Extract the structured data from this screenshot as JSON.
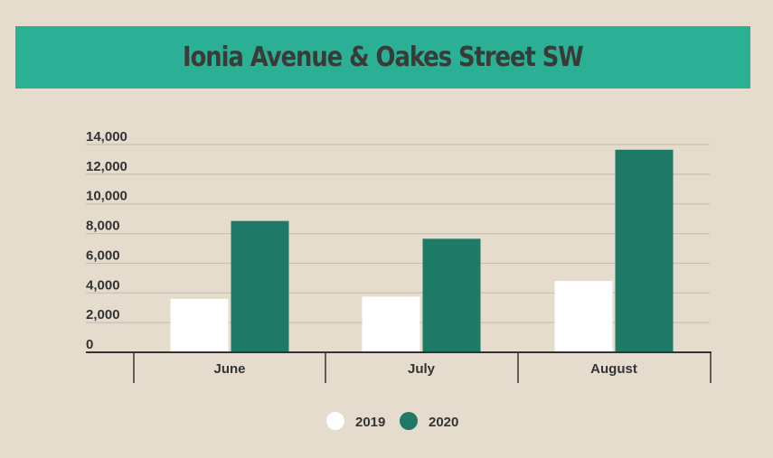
{
  "title": "Ionia Avenue & Oakes Street SW",
  "colors": {
    "background": "#e5dccd",
    "banner": "#2bb096",
    "series_2019": "#ffffff",
    "series_2020": "#1e7a66",
    "grid": "#c9c0b0",
    "axis": "#333333"
  },
  "chart_data": {
    "type": "bar",
    "title": "Ionia Avenue & Oakes Street SW",
    "categories": [
      "June",
      "July",
      "August"
    ],
    "series": [
      {
        "name": "2019",
        "values": [
          3600,
          3750,
          4800
        ]
      },
      {
        "name": "2020",
        "values": [
          8850,
          7650,
          13650
        ]
      }
    ],
    "ylim": [
      0,
      14000
    ],
    "yticks": [
      0,
      2000,
      4000,
      6000,
      8000,
      10000,
      12000,
      14000
    ],
    "ytick_labels": [
      "0",
      "2,000",
      "4,000",
      "6,000",
      "8,000",
      "10,000",
      "12,000",
      "14,000"
    ],
    "xlabel": "",
    "ylabel": "",
    "grid": true,
    "legend": "bottom-center"
  }
}
